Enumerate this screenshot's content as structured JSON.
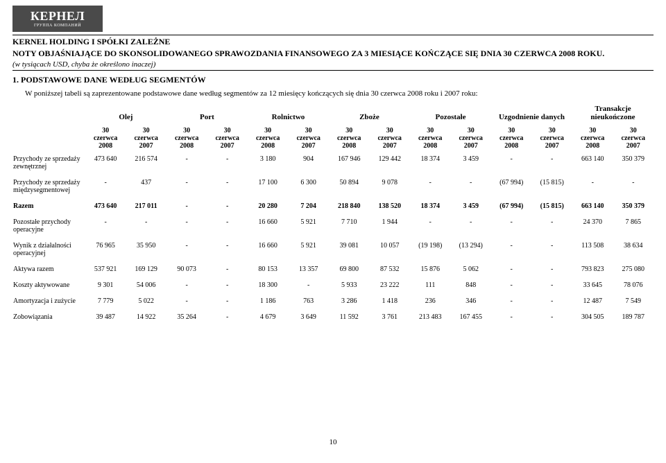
{
  "logo": {
    "main": "КЕРНЕЛ",
    "sub": "ГРУППА КОМПАНИЙ"
  },
  "header": {
    "title": "KERNEL HOLDING I SPÓŁKI ZALEŻNE",
    "subtitle": "NOTY OBJAŚNIAJĄCE DO SKONSOLIDOWANEGO SPRAWOZDANIA FINANSOWEGO ZA 3 MIESIĄCE KOŃCZĄCE SIĘ DNIA 30 CZERWCA 2008 ROKU.",
    "note": "(w tysiącach USD, chyba że określono inaczej)"
  },
  "section": {
    "heading": "1. PODSTAWOWE DANE WEDŁUG SEGMENTÓW",
    "intro": "W poniższej tabeli są zaprezentowane podstawowe dane według segmentów za 12 miesięcy kończących się dnia 30 czerwca 2008 roku i 2007 roku:"
  },
  "table": {
    "groups": [
      "Olej",
      "Port",
      "Rolnictwo",
      "Zboże",
      "Pozostałe",
      "Uzgodnienie danych",
      "Transakcje nieukończone"
    ],
    "col_label": "30 czerwca",
    "years": [
      "2008",
      "2007"
    ],
    "rows": [
      {
        "label": "Przychody ze sprzedaży zewnętrznej",
        "bold": false,
        "cells": [
          "473 640",
          "216 574",
          "-",
          "-",
          "3 180",
          "904",
          "167 946",
          "129 442",
          "18 374",
          "3 459",
          "-",
          "-",
          "663 140",
          "350 379"
        ]
      },
      {
        "label": "Przychody ze sprzedaży międzysegmentowej",
        "bold": false,
        "cells": [
          "-",
          "437",
          "-",
          "-",
          "17 100",
          "6 300",
          "50 894",
          "9 078",
          "-",
          "-",
          "(67 994)",
          "(15 815)",
          "-",
          "-"
        ]
      },
      {
        "label": "Razem",
        "bold": true,
        "cells": [
          "473 640",
          "217 011",
          "-",
          "-",
          "20 280",
          "7 204",
          "218 840",
          "138 520",
          "18 374",
          "3 459",
          "(67 994)",
          "(15 815)",
          "663 140",
          "350 379"
        ]
      },
      {
        "label": "Pozostałe przychody operacyjne",
        "bold": false,
        "cells": [
          "-",
          "-",
          "-",
          "-",
          "16 660",
          "5 921",
          "7 710",
          "1 944",
          "-",
          "-",
          "-",
          "-",
          "24 370",
          "7 865"
        ]
      },
      {
        "label": "Wynik z działalności operacyjnej",
        "bold": false,
        "cells": [
          "76 965",
          "35 950",
          "-",
          "-",
          "16 660",
          "5 921",
          "39 081",
          "10 057",
          "(19 198)",
          "(13 294)",
          "-",
          "-",
          "113 508",
          "38 634"
        ]
      },
      {
        "label": "Aktywa razem",
        "bold": false,
        "cells": [
          "537 921",
          "169 129",
          "90 073",
          "-",
          "80 153",
          "13 357",
          "69 800",
          "87 532",
          "15 876",
          "5 062",
          "-",
          "-",
          "793 823",
          "275 080"
        ]
      },
      {
        "label": "Koszty aktywowane",
        "bold": false,
        "cells": [
          "9 301",
          "54 006",
          "-",
          "-",
          "18 300",
          "-",
          "5 933",
          "23 222",
          "111",
          "848",
          "-",
          "-",
          "33 645",
          "78 076"
        ]
      },
      {
        "label": "Amortyzacja i zużycie",
        "bold": false,
        "cells": [
          "7 779",
          "5 022",
          "-",
          "-",
          "1 186",
          "763",
          "3 286",
          "1 418",
          "236",
          "346",
          "-",
          "-",
          "12 487",
          "7 549"
        ]
      },
      {
        "label": "Zobowiązania",
        "bold": false,
        "cells": [
          "39 487",
          "14 922",
          "35 264",
          "-",
          "4 679",
          "3 649",
          "11 592",
          "3 761",
          "213 483",
          "167 455",
          "-",
          "-",
          "304 505",
          "189 787"
        ]
      }
    ]
  },
  "page_number": "10"
}
